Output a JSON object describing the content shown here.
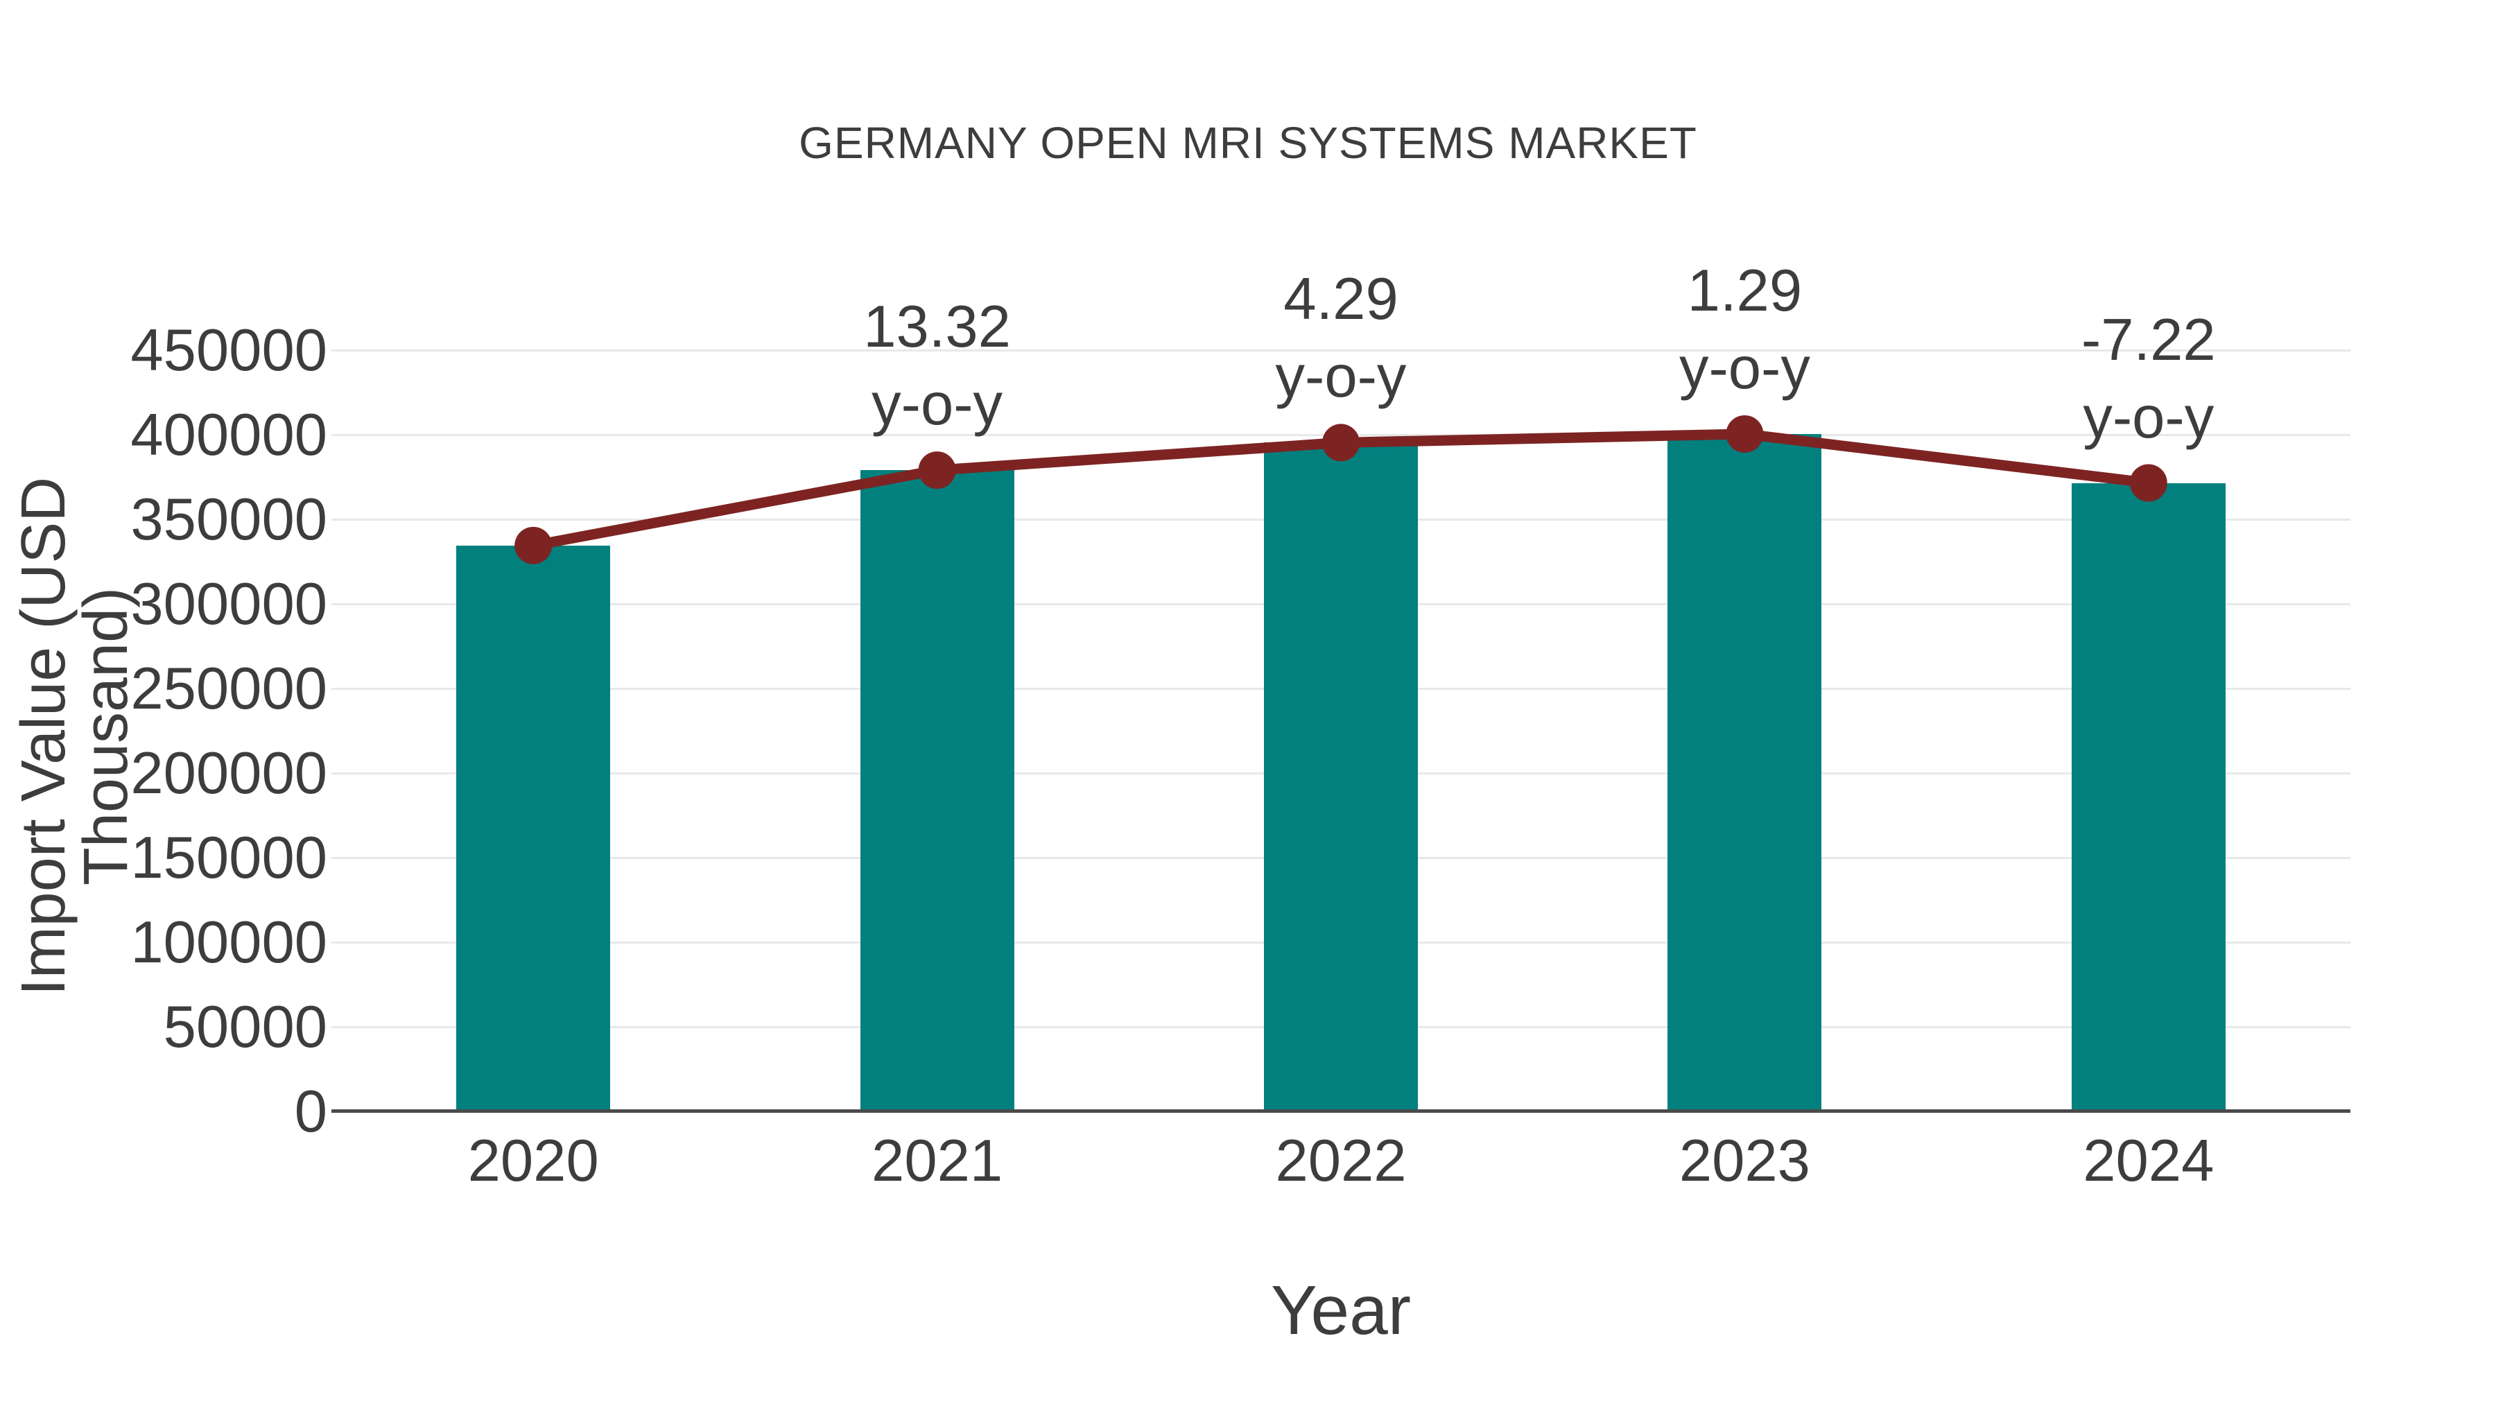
{
  "chart_data": {
    "type": "bar",
    "title": "GERMANY OPEN MRI SYSTEMS MARKET",
    "xlabel": "Year",
    "ylabel": "Import Value (USD Thousand)",
    "categories": [
      "2020",
      "2021",
      "2022",
      "2023",
      "2024"
    ],
    "series": [
      {
        "name": "Import Value",
        "type": "bar",
        "color": "#01807E",
        "values": [
          334500,
          379060,
          395320,
          400420,
          371510
        ]
      },
      {
        "name": "Trend",
        "type": "line",
        "color": "#7D2423",
        "values": [
          334500,
          379060,
          395320,
          400420,
          371510
        ]
      }
    ],
    "annotations": [
      {
        "category": "2021",
        "lines": [
          "13.32",
          "y-o-y"
        ]
      },
      {
        "category": "2022",
        "lines": [
          "4.29",
          "y-o-y"
        ]
      },
      {
        "category": "2023",
        "lines": [
          "1.29",
          "y-o-y"
        ]
      },
      {
        "category": "2024",
        "lines": [
          "-7.22",
          "y-o-y"
        ]
      }
    ],
    "ylim": [
      0,
      450000
    ],
    "yticks": [
      0,
      50000,
      100000,
      150000,
      200000,
      250000,
      300000,
      350000,
      400000,
      450000
    ],
    "xticks": [
      "2020",
      "2021",
      "2022",
      "2023",
      "2024"
    ],
    "grid": true,
    "legend": false,
    "colors": {
      "bar": "#01807E",
      "line": "#7D2423",
      "marker": "#7D2423",
      "text": "#3D3D3D",
      "grid": "#E8E8E8",
      "axis": "#4A4A4A",
      "background": "#FFFFFF"
    }
  }
}
